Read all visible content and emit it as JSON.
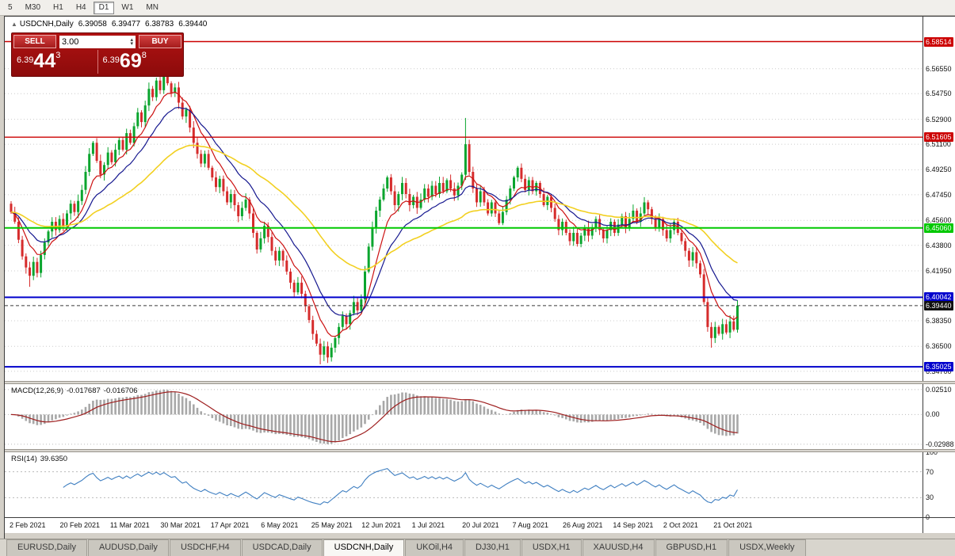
{
  "toolbar": {
    "timeframes": [
      "5",
      "M30",
      "H1",
      "H4",
      "D1",
      "W1",
      "MN"
    ],
    "active": "D1"
  },
  "chart": {
    "title": "USDCNH,Daily",
    "ohlc": {
      "open": "6.39058",
      "high": "6.39477",
      "low": "6.38783",
      "close": "6.39440"
    },
    "trade_panel": {
      "sell_label": "SELL",
      "buy_label": "BUY",
      "lot": "3.00",
      "sell_price": {
        "prefix": "6.39",
        "big": "44",
        "sup": "3"
      },
      "buy_price": {
        "prefix": "6.39",
        "big": "69",
        "sup": "8"
      }
    }
  },
  "macd": {
    "label": "MACD(12,26,9)",
    "main_value": "-0.017687",
    "signal_value": "-0.016706"
  },
  "rsi": {
    "label": "RSI(14)",
    "value": "39.6350"
  },
  "x_axis": {
    "labels": [
      "2 Feb 2021",
      "20 Feb 2021",
      "11 Mar 2021",
      "30 Mar 2021",
      "17 Apr 2021",
      "6 May 2021",
      "25 May 2021",
      "12 Jun 2021",
      "1 Jul 2021",
      "20 Jul 2021",
      "7 Aug 2021",
      "26 Aug 2021",
      "14 Sep 2021",
      "2 Oct 2021",
      "21 Oct 2021"
    ]
  },
  "tabs": {
    "items": [
      "EURUSD,Daily",
      "AUDUSD,Daily",
      "USDCHF,H4",
      "USDCAD,Daily",
      "USDCNH,Daily",
      "UKOil,H4",
      "DJ30,H1",
      "USDX,H1",
      "XAUUSD,H4",
      "GBPUSD,H1",
      "USDX,Weekly"
    ],
    "active": "USDCNH,Daily"
  },
  "chart_data": {
    "type": "candlestick",
    "symbol": "USDCNH",
    "period": "Daily",
    "price_panel": {
      "ylim": [
        6.34,
        6.602
      ],
      "open_first": 6.468,
      "closes": [
        6.462,
        6.455,
        6.442,
        6.43,
        6.422,
        6.416,
        6.426,
        6.418,
        6.431,
        6.44,
        6.448,
        6.455,
        6.449,
        6.457,
        6.452,
        6.461,
        6.468,
        6.462,
        6.47,
        6.478,
        6.491,
        6.504,
        6.512,
        6.499,
        6.489,
        6.496,
        6.505,
        6.498,
        6.507,
        6.514,
        6.507,
        6.519,
        6.512,
        6.524,
        6.534,
        6.527,
        6.539,
        6.551,
        6.545,
        6.557,
        6.55,
        6.562,
        6.555,
        6.548,
        6.552,
        6.541,
        6.531,
        6.536,
        6.523,
        6.512,
        6.504,
        6.497,
        6.504,
        6.494,
        6.487,
        6.48,
        6.486,
        6.477,
        6.469,
        6.475,
        6.467,
        6.459,
        6.465,
        6.471,
        6.461,
        6.447,
        6.435,
        6.443,
        6.452,
        6.444,
        6.434,
        6.427,
        6.434,
        6.427,
        6.419,
        6.411,
        6.404,
        6.411,
        6.403,
        6.394,
        6.384,
        6.374,
        6.367,
        6.359,
        6.365,
        6.357,
        6.364,
        6.371,
        6.379,
        6.387,
        6.381,
        6.389,
        6.397,
        6.391,
        6.399,
        6.419,
        6.437,
        6.451,
        6.463,
        6.471,
        6.479,
        6.487,
        6.477,
        6.467,
        6.475,
        6.483,
        6.475,
        6.467,
        6.473,
        6.465,
        6.471,
        6.479,
        6.473,
        6.481,
        6.475,
        6.483,
        6.477,
        6.485,
        6.479,
        6.474,
        6.481,
        6.489,
        6.511,
        6.491,
        6.479,
        6.469,
        6.477,
        6.469,
        6.461,
        6.469,
        6.461,
        6.454,
        6.462,
        6.471,
        6.479,
        6.487,
        6.494,
        6.486,
        6.478,
        6.485,
        6.477,
        6.483,
        6.475,
        6.467,
        6.473,
        6.465,
        6.457,
        6.449,
        6.455,
        6.447,
        6.441,
        6.447,
        6.439,
        6.445,
        6.451,
        6.445,
        6.451,
        6.457,
        6.449,
        6.443,
        6.449,
        6.455,
        6.447,
        6.453,
        6.459,
        6.451,
        6.457,
        6.463,
        6.455,
        6.461,
        6.469,
        6.464,
        6.457,
        6.451,
        6.457,
        6.449,
        6.443,
        6.449,
        6.455,
        6.447,
        6.441,
        6.434,
        6.427,
        6.433,
        6.425,
        6.417,
        6.397,
        6.379,
        6.371,
        6.379,
        6.374,
        6.381,
        6.375,
        6.383,
        6.377,
        6.3944
      ],
      "wick_overrides": {
        "5": {
          "l": 6.408
        },
        "41": {
          "h": 6.5655
        },
        "83": {
          "l": 6.352
        },
        "122": {
          "h": 6.53
        },
        "188": {
          "l": 6.364
        }
      },
      "ticks": [
        {
          "value": 6.5655,
          "label": "6.56550"
        },
        {
          "value": 6.5475,
          "label": "6.54750"
        },
        {
          "value": 6.529,
          "label": "6.52900"
        },
        {
          "value": 6.511,
          "label": "6.51100"
        },
        {
          "value": 6.4925,
          "label": "6.49250"
        },
        {
          "value": 6.4745,
          "label": "6.47450"
        },
        {
          "value": 6.456,
          "label": "6.45600"
        },
        {
          "value": 6.438,
          "label": "6.43800"
        },
        {
          "value": 6.4195,
          "label": "6.41950"
        },
        {
          "value": 6.3835,
          "label": "6.38350"
        },
        {
          "value": 6.365,
          "label": "6.36500"
        },
        {
          "value": 6.347,
          "label": "6.34700"
        }
      ],
      "levels": [
        {
          "price": 6.58514,
          "label": "6.58514",
          "color": "#cc0000",
          "width": 1.4
        },
        {
          "price": 6.51605,
          "label": "6.51605",
          "color": "#cc0000",
          "width": 1.4
        },
        {
          "price": 6.4506,
          "label": "6.45060",
          "color": "#00c800",
          "width": 2
        },
        {
          "price": 6.40042,
          "label": "6.40042",
          "color": "#0000cc",
          "width": 2
        },
        {
          "price": 6.35025,
          "label": "6.35025",
          "color": "#0000cc",
          "width": 2
        }
      ],
      "current_price": {
        "value": 6.3944,
        "label": "6.39440"
      },
      "ma": [
        {
          "period": 8,
          "color": "#cc1111",
          "width": 1.2
        },
        {
          "period": 16,
          "color": "#16188f",
          "width": 1.2
        },
        {
          "period": 45,
          "color": "#f2d021",
          "width": 1.6
        }
      ],
      "colors": {
        "up": "#0aa52e",
        "down": "#d62c2c",
        "grid": "#cccccc",
        "current": "#3a3a3a"
      }
    },
    "macd_panel": {
      "ylim": [
        -0.0347,
        0.0306
      ],
      "ticks": [
        {
          "value": 0.0251,
          "label": "0.02510"
        },
        {
          "value": 0.0,
          "label": "0.00"
        },
        {
          "value": -0.02988,
          "label": "-0.02988"
        }
      ],
      "colors": {
        "histogram": "#a8a8a8",
        "signal": "#9e1f1f",
        "grid": "#bbbbbb"
      }
    },
    "rsi_panel": {
      "period": 14,
      "ticks": [
        {
          "value": 100,
          "label": "100"
        },
        {
          "value": 70,
          "label": "70"
        },
        {
          "value": 30,
          "label": "30"
        },
        {
          "value": 0,
          "label": "0"
        }
      ],
      "dotted_levels": [
        70,
        30
      ],
      "color": "#3f7fc1",
      "grid": "#bbbbbb"
    }
  }
}
